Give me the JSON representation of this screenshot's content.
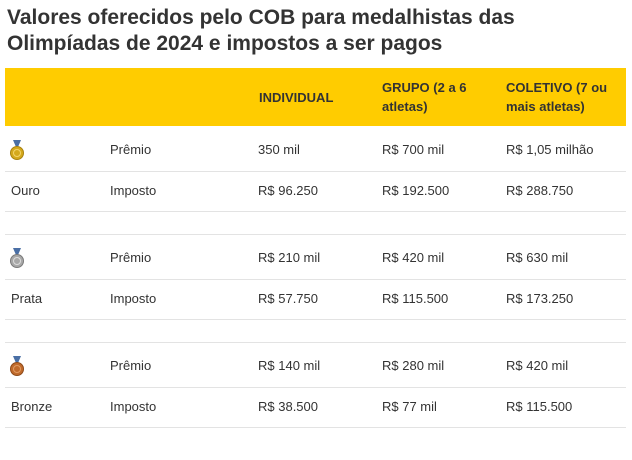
{
  "title": "Valores oferecidos pelo COB para medalhistas das Olimpíadas de 2024 e impostos a ser pagos",
  "header": {
    "individual": "INDIVIDUAL",
    "grupo": "GRUPO (2 a 6 atletas)",
    "coletivo": "COLETIVO (7 ou mais atletas)"
  },
  "colors": {
    "header_bg": "#ffcc00",
    "gold": "#d4a91c",
    "silver": "#9e9e9e",
    "bronze": "#c06a2b"
  },
  "medals": [
    {
      "icon": "gold-medal-icon",
      "name": "Ouro",
      "premio": {
        "label": "Prêmio",
        "individual": "350 mil",
        "grupo": "R$ 700 mil",
        "coletivo": "R$ 1,05 milhão"
      },
      "imposto": {
        "label": "Imposto",
        "individual": "R$ 96.250",
        "grupo": "R$ 192.500",
        "coletivo": "R$ 288.750"
      }
    },
    {
      "icon": "silver-medal-icon",
      "name": "Prata",
      "premio": {
        "label": "Prêmio",
        "individual": "R$ 210 mil",
        "grupo": "R$ 420 mil",
        "coletivo": "R$ 630 mil"
      },
      "imposto": {
        "label": "Imposto",
        "individual": "R$ 57.750",
        "grupo": "R$ 115.500",
        "coletivo": "R$ 173.250"
      }
    },
    {
      "icon": "bronze-medal-icon",
      "name": "Bronze",
      "premio": {
        "label": "Prêmio",
        "individual": "R$ 140 mil",
        "grupo": "R$ 280 mil",
        "coletivo": "R$ 420 mil"
      },
      "imposto": {
        "label": "Imposto",
        "individual": "R$ 38.500",
        "grupo": "R$ 77 mil",
        "coletivo": "R$ 115.500"
      }
    }
  ]
}
